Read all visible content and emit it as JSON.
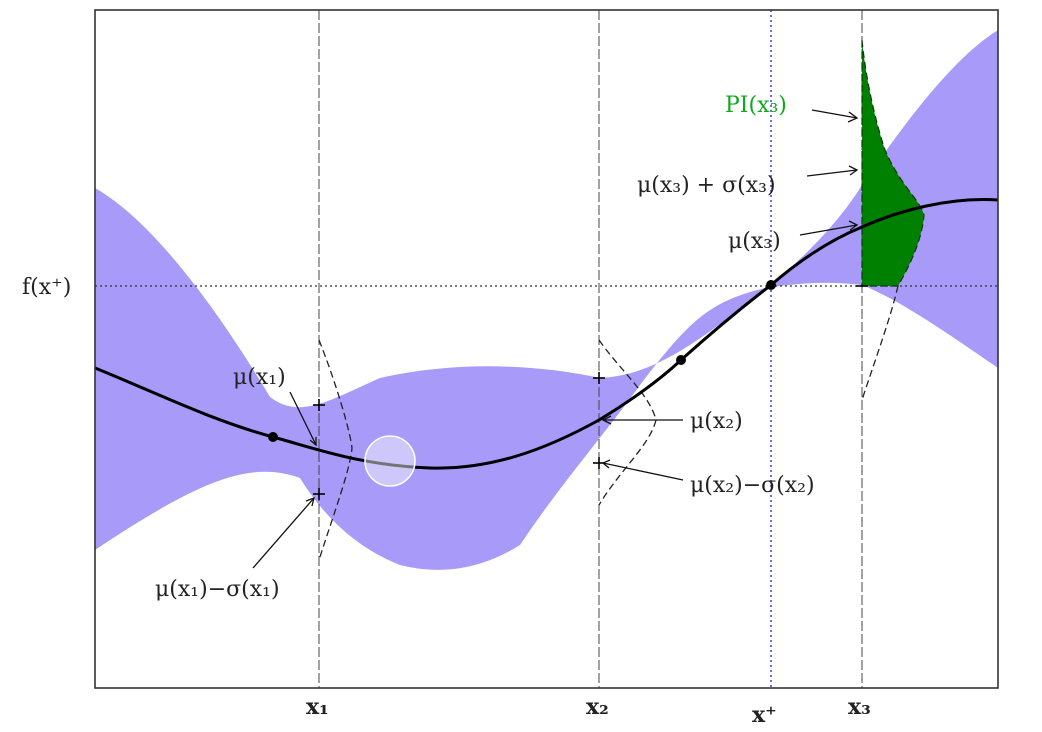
{
  "colors": {
    "band": "#a79af8",
    "pi_fill": "#008000",
    "pi_label": "#11a81e",
    "curve": "#000000",
    "xplus_line": "#4a4ad8",
    "frame": "#333333"
  },
  "labels": {
    "y_fx_plus": "f(x⁺)",
    "x1": "x₁",
    "x2": "x₂",
    "x3": "x₃",
    "xplus": "x⁺",
    "pi_x3": "PI(x₃)",
    "mu_sigma_plus_x3": "μ(x₃) + σ(x₃)",
    "mu_x3": "μ(x₃)",
    "mu_x2": "μ(x₂)",
    "mu_minus_sigma_x2": "μ(x₂)−σ(x₂)",
    "mu_x1": "μ(x₁)",
    "mu_minus_sigma_x1": "μ(x₁)−σ(x₁)"
  },
  "overlay": {
    "cursor_icon": "cursor-highlight-icon"
  }
}
